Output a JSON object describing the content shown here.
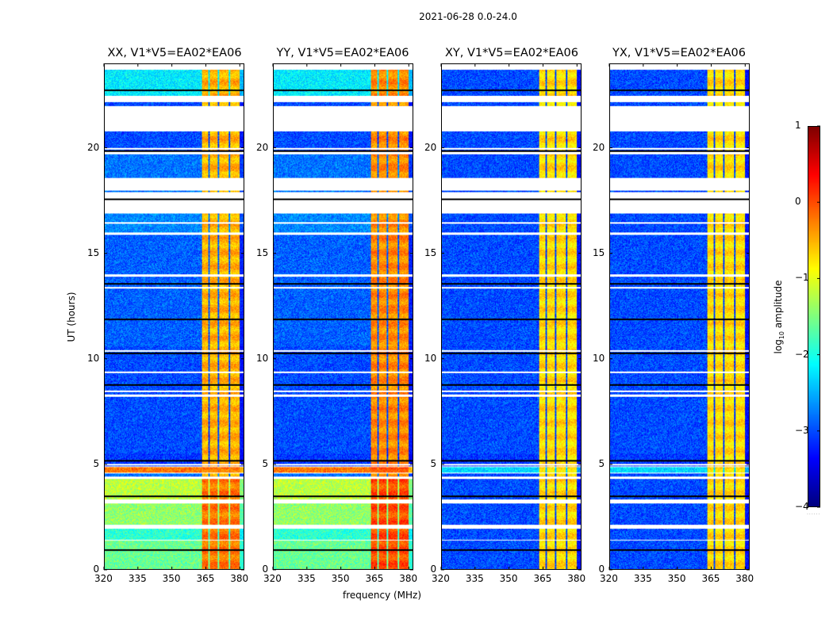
{
  "chart_data": {
    "type": "heatmap",
    "title": "2021-06-28 0.0-24.0",
    "xlabel": "frequency (MHz)",
    "ylabel": "UT (hours)",
    "xlim": [
      320,
      382
    ],
    "ylim": [
      0,
      24
    ],
    "xticks": [
      320,
      335,
      350,
      365,
      380
    ],
    "yticks": [
      0,
      5,
      10,
      15,
      20
    ],
    "colorbar": {
      "label_prefix": "log",
      "label_sub": "10",
      "label_suffix": " amplitude",
      "colormap": "jet",
      "range": [
        -4,
        1
      ],
      "ticks": [
        1,
        0,
        -1,
        -2,
        -3,
        -4
      ],
      "tick_labels": [
        "1",
        "0",
        "−1",
        "−2",
        "−3",
        "−4"
      ]
    },
    "rfi_bands_mhz": [
      [
        363.2,
        366.0
      ],
      [
        366.6,
        370.2
      ],
      [
        370.8,
        375.2
      ],
      [
        375.8,
        380.0
      ]
    ],
    "panels": [
      {
        "title": "XX, V1*V5=EA02*EA06",
        "pol": "XX",
        "band_level": -0.5,
        "bg_high": true
      },
      {
        "title": "YY, V1*V5=EA02*EA06",
        "pol": "YY",
        "band_level": -0.3,
        "bg_high": true
      },
      {
        "title": "XY, V1*V5=EA02*EA06",
        "pol": "XY",
        "band_level": -0.7,
        "bg_high": false
      },
      {
        "title": "YX, V1*V5=EA02*EA06",
        "pol": "YX",
        "band_level": -0.7,
        "bg_high": false
      }
    ],
    "time_segments_ut": [
      {
        "t0": 0.0,
        "t1": 1.35,
        "bg": -1.6,
        "bg_cross": -3.0
      },
      {
        "t0": 1.4,
        "t1": 1.9,
        "bg": -1.9,
        "bg_cross": -3.0
      },
      {
        "t0": 2.1,
        "t1": 3.1,
        "bg": -1.4,
        "bg_cross": -3.0
      },
      {
        "t0": 3.3,
        "t1": 4.3,
        "bg": -1.2,
        "bg_cross": -3.0
      },
      {
        "t0": 4.4,
        "t1": 4.55,
        "bg": -2.8,
        "bg_cross": -3.0
      },
      {
        "t0": 4.6,
        "t1": 4.85,
        "bg": -0.2,
        "bg_cross": -2.3
      },
      {
        "t0": 4.9,
        "t1": 5.5,
        "bg": -3.1,
        "bg_cross": -3.1
      },
      {
        "t0": 5.5,
        "t1": 8.2,
        "bg": -3.0,
        "bg_cross": -3.0
      },
      {
        "t0": 8.3,
        "t1": 10.6,
        "bg": -3.0,
        "bg_cross": -3.0
      },
      {
        "t0": 10.6,
        "t1": 13.9,
        "bg": -2.9,
        "bg_cross": -3.0
      },
      {
        "t0": 14.0,
        "t1": 15.9,
        "bg": -2.9,
        "bg_cross": -3.0
      },
      {
        "t0": 16.0,
        "t1": 16.9,
        "bg": -2.7,
        "bg_cross": -3.0
      },
      {
        "t0": 17.9,
        "t1": 18.0,
        "bg": -2.8,
        "bg_cross": -3.0
      },
      {
        "t0": 18.6,
        "t1": 19.7,
        "bg": -2.8,
        "bg_cross": -3.0
      },
      {
        "t0": 19.9,
        "t1": 20.8,
        "bg": -3.0,
        "bg_cross": -3.0
      },
      {
        "t0": 22.0,
        "t1": 22.2,
        "bg": -3.0,
        "bg_cross": -3.0
      },
      {
        "t0": 22.5,
        "t1": 23.8,
        "bg": -2.2,
        "bg_cross": -3.0
      }
    ],
    "flag_lines_ut": [
      0.95,
      2.0,
      3.5,
      5.0,
      5.2,
      8.5,
      8.8,
      9.4,
      10.3,
      10.4,
      11.9,
      13.4,
      13.6,
      16.5,
      17.6,
      17.7,
      19.9,
      20.0,
      22.8,
      23.8
    ]
  }
}
